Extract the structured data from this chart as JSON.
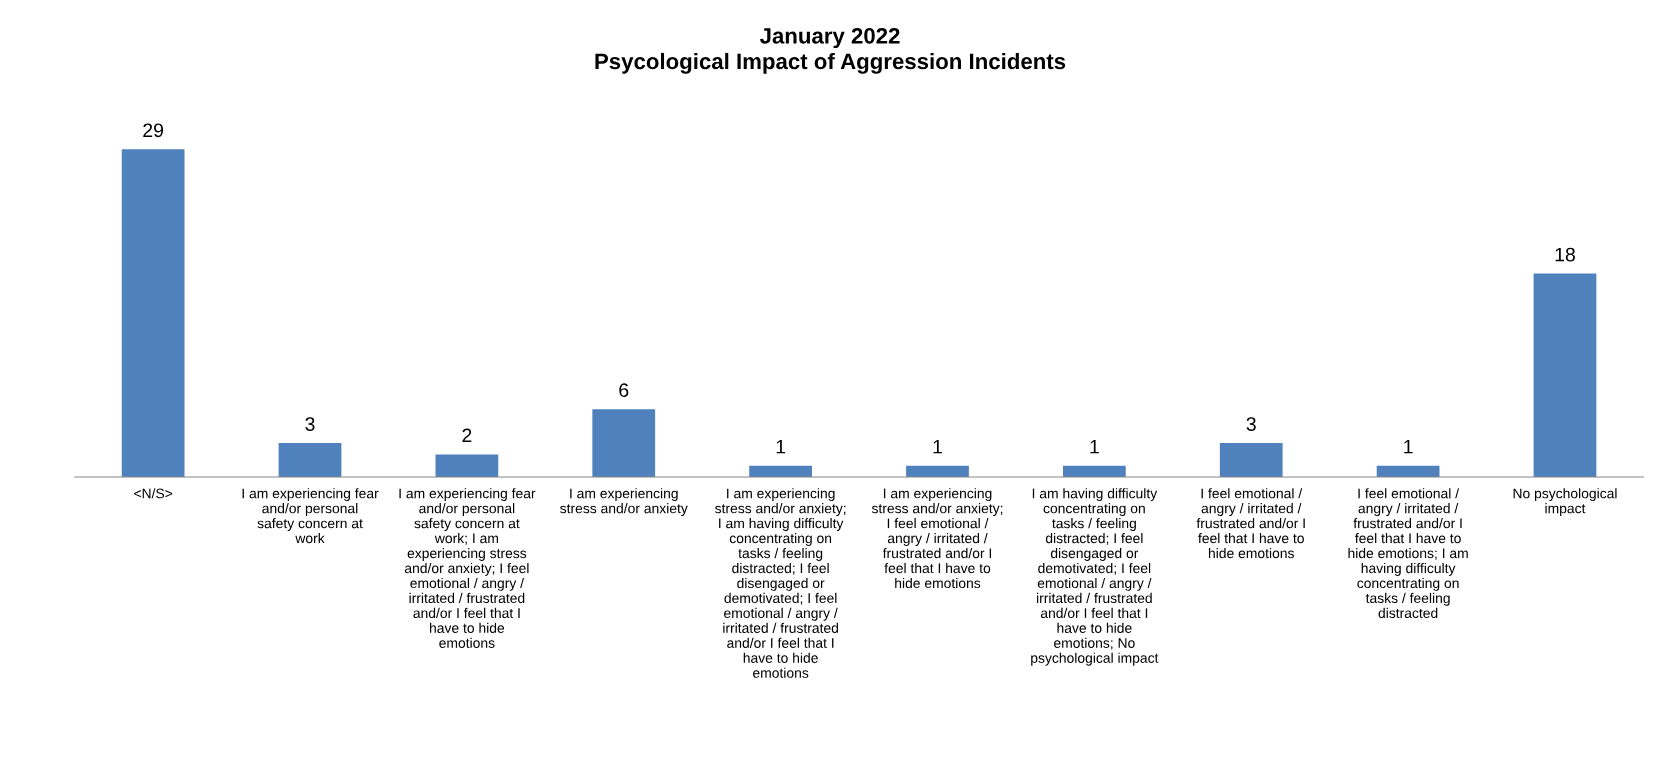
{
  "chart_data": {
    "type": "bar",
    "title": "January 2022\nPsycological Impact of Aggression Incidents",
    "categories": [
      "<N/S>",
      "I am experiencing fear\nand/or personal\nsafety concern at\nwork",
      "I am experiencing fear\nand/or personal\nsafety concern at\nwork; I am\nexperiencing stress\nand/or anxiety; I feel\nemotional / angry /\nirritated / frustrated\nand/or I feel that I\nhave to hide\nemotions",
      "I am experiencing\nstress and/or anxiety",
      "I am experiencing\nstress and/or anxiety;\nI am having difficulty\nconcentrating on\ntasks / feeling\ndistracted; I feel\ndisengaged or\ndemotivated; I feel\nemotional / angry /\nirritated / frustrated\nand/or I feel that I\nhave to hide\nemotions",
      "I am experiencing\nstress and/or anxiety;\nI feel emotional /\nangry / irritated /\nfrustrated and/or I\nfeel that I have to\nhide emotions",
      "I am having difficulty\nconcentrating on\ntasks / feeling\ndistracted; I feel\ndisengaged or\ndemotivated; I feel\nemotional / angry /\nirritated / frustrated\nand/or I feel that I\nhave to hide\nemotions; No\npsychological impact",
      "I feel emotional /\nangry / irritated /\nfrustrated and/or I\nfeel that I have to\nhide emotions",
      "I feel emotional /\nangry / irritated /\nfrustrated and/or I\nfeel that I have to\nhide emotions; I am\nhaving difficulty\nconcentrating on\ntasks / feeling\ndistracted",
      "No psychological\nimpact"
    ],
    "values": [
      29,
      3,
      2,
      6,
      1,
      1,
      1,
      3,
      1,
      18
    ],
    "color": "#4f81bd",
    "data_labels": true
  }
}
